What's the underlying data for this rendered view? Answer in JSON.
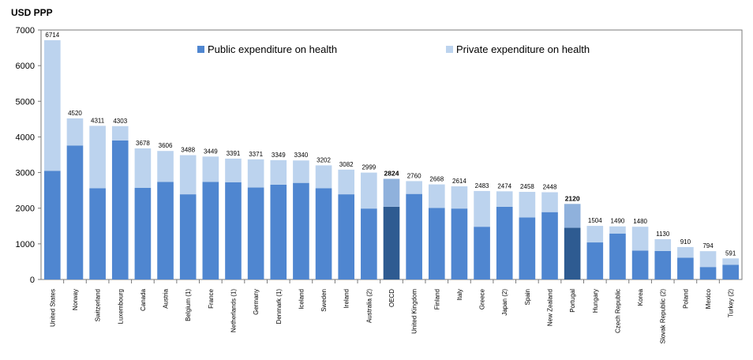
{
  "chart_data": {
    "type": "bar",
    "stacked": true,
    "ylabel": "USD PPP",
    "ylim": [
      0,
      7000
    ],
    "yticks": [
      0,
      1000,
      2000,
      3000,
      4000,
      5000,
      6000,
      7000
    ],
    "grid": false,
    "legend_position": "top",
    "categories": [
      "United States",
      "Norway",
      "Switzerland",
      "Luxembourg",
      "Canada",
      "Austria",
      "Belgium (1)",
      "France",
      "Netherlands (1)",
      "Germany",
      "Denmark (1)",
      "Iceland",
      "Sweden",
      "Ireland",
      "Australia (2)",
      "OECD",
      "United Kingdom",
      "Finland",
      "Italy",
      "Greece",
      "Japan (2)",
      "Spain",
      "New Zealand",
      "Portugal",
      "Hungary",
      "Czech Republic",
      "Korea",
      "Slovak Republic (2)",
      "Poland",
      "Mexico",
      "Turkey (2)"
    ],
    "totals": [
      6714,
      4520,
      4311,
      4303,
      3678,
      3606,
      3488,
      3449,
      3391,
      3371,
      3349,
      3340,
      3202,
      3082,
      2999,
      2824,
      2760,
      2668,
      2614,
      2483,
      2474,
      2458,
      2448,
      2120,
      1504,
      1490,
      1480,
      1130,
      910,
      794,
      591
    ],
    "highlighted": [
      "OECD",
      "Portugal"
    ],
    "series": [
      {
        "name": "Public expenditure on health",
        "color": "#4f86d0",
        "highlight_color": "#2e5b91",
        "values": [
          3050,
          3760,
          2560,
          3900,
          2570,
          2740,
          2390,
          2740,
          2730,
          2580,
          2660,
          2710,
          2560,
          2390,
          1990,
          2040,
          2400,
          2010,
          1990,
          1480,
          2040,
          1740,
          1890,
          1450,
          1040,
          1290,
          810,
          800,
          610,
          350,
          410
        ]
      },
      {
        "name": "Private expenditure on health",
        "color": "#bcd3ee",
        "highlight_color": "#8fb1dc",
        "values": [
          3664,
          760,
          1751,
          403,
          1108,
          866,
          1098,
          709,
          661,
          791,
          689,
          630,
          642,
          692,
          1009,
          784,
          360,
          658,
          624,
          1003,
          434,
          718,
          558,
          670,
          464,
          200,
          670,
          330,
          300,
          444,
          181
        ]
      }
    ]
  }
}
